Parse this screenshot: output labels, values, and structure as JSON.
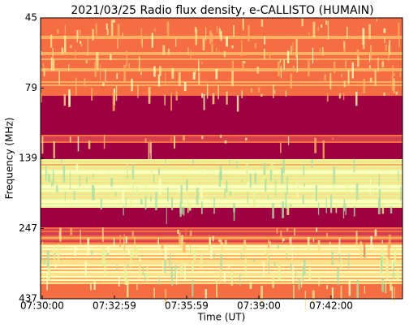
{
  "chart_data": {
    "type": "spectrogram",
    "title": "2021/03/25  Radio flux density, e-CALLISTO (HUMAIN)",
    "x_label": "Time (UT)",
    "y_label": "Frequency (MHz)",
    "xticks": [
      "07:30:00",
      "07:32:59",
      "07:35:59",
      "07:39:00",
      "07:42:00"
    ],
    "yticks": [
      45,
      79,
      139,
      247,
      437
    ],
    "colormap": [
      "#9e0142",
      "#d53e4f",
      "#f46d43",
      "#fdae61",
      "#fee08b",
      "#ffffbf",
      "#e6f598",
      "#abdda4"
    ]
  }
}
